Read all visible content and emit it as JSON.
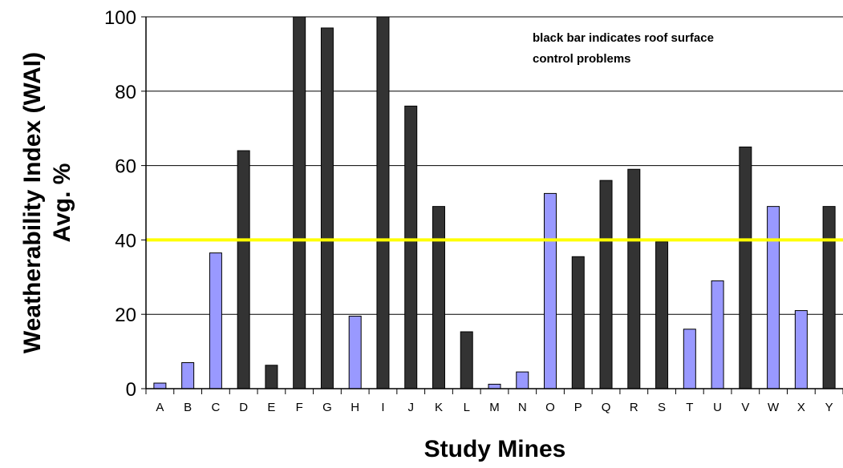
{
  "chart_data": {
    "type": "bar",
    "categories": [
      "A",
      "B",
      "C",
      "D",
      "E",
      "F",
      "G",
      "H",
      "I",
      "J",
      "K",
      "L",
      "M",
      "N",
      "O",
      "P",
      "Q",
      "R",
      "S",
      "T",
      "U",
      "V",
      "W",
      "X",
      "Y"
    ],
    "values": [
      1.5,
      7,
      36.5,
      64,
      6.3,
      100,
      97,
      19.5,
      100,
      76,
      49,
      15.3,
      1.2,
      4.5,
      52.5,
      35.5,
      56,
      59,
      39.5,
      16,
      29,
      65,
      49,
      21,
      49
    ],
    "roof_control_problem": [
      false,
      false,
      false,
      true,
      true,
      true,
      true,
      false,
      true,
      true,
      true,
      true,
      false,
      false,
      false,
      true,
      true,
      true,
      true,
      false,
      false,
      true,
      false,
      false,
      true
    ],
    "ylabel_line1": "Weatherability Index (WAI)",
    "ylabel_line2": "Avg. %",
    "xlabel": "Study Mines",
    "ylim": [
      0,
      100
    ],
    "yticks": [
      0,
      20,
      40,
      60,
      80,
      100
    ],
    "threshold": 40,
    "annotation_line1": "black bar indicates roof surface",
    "annotation_line2": "control problems",
    "grid": "horizontal",
    "colors": {
      "problem_bar": "#333333",
      "normal_bar": "#9999ff",
      "threshold_line": "#ffff00",
      "bar_outline": "#000000"
    }
  }
}
